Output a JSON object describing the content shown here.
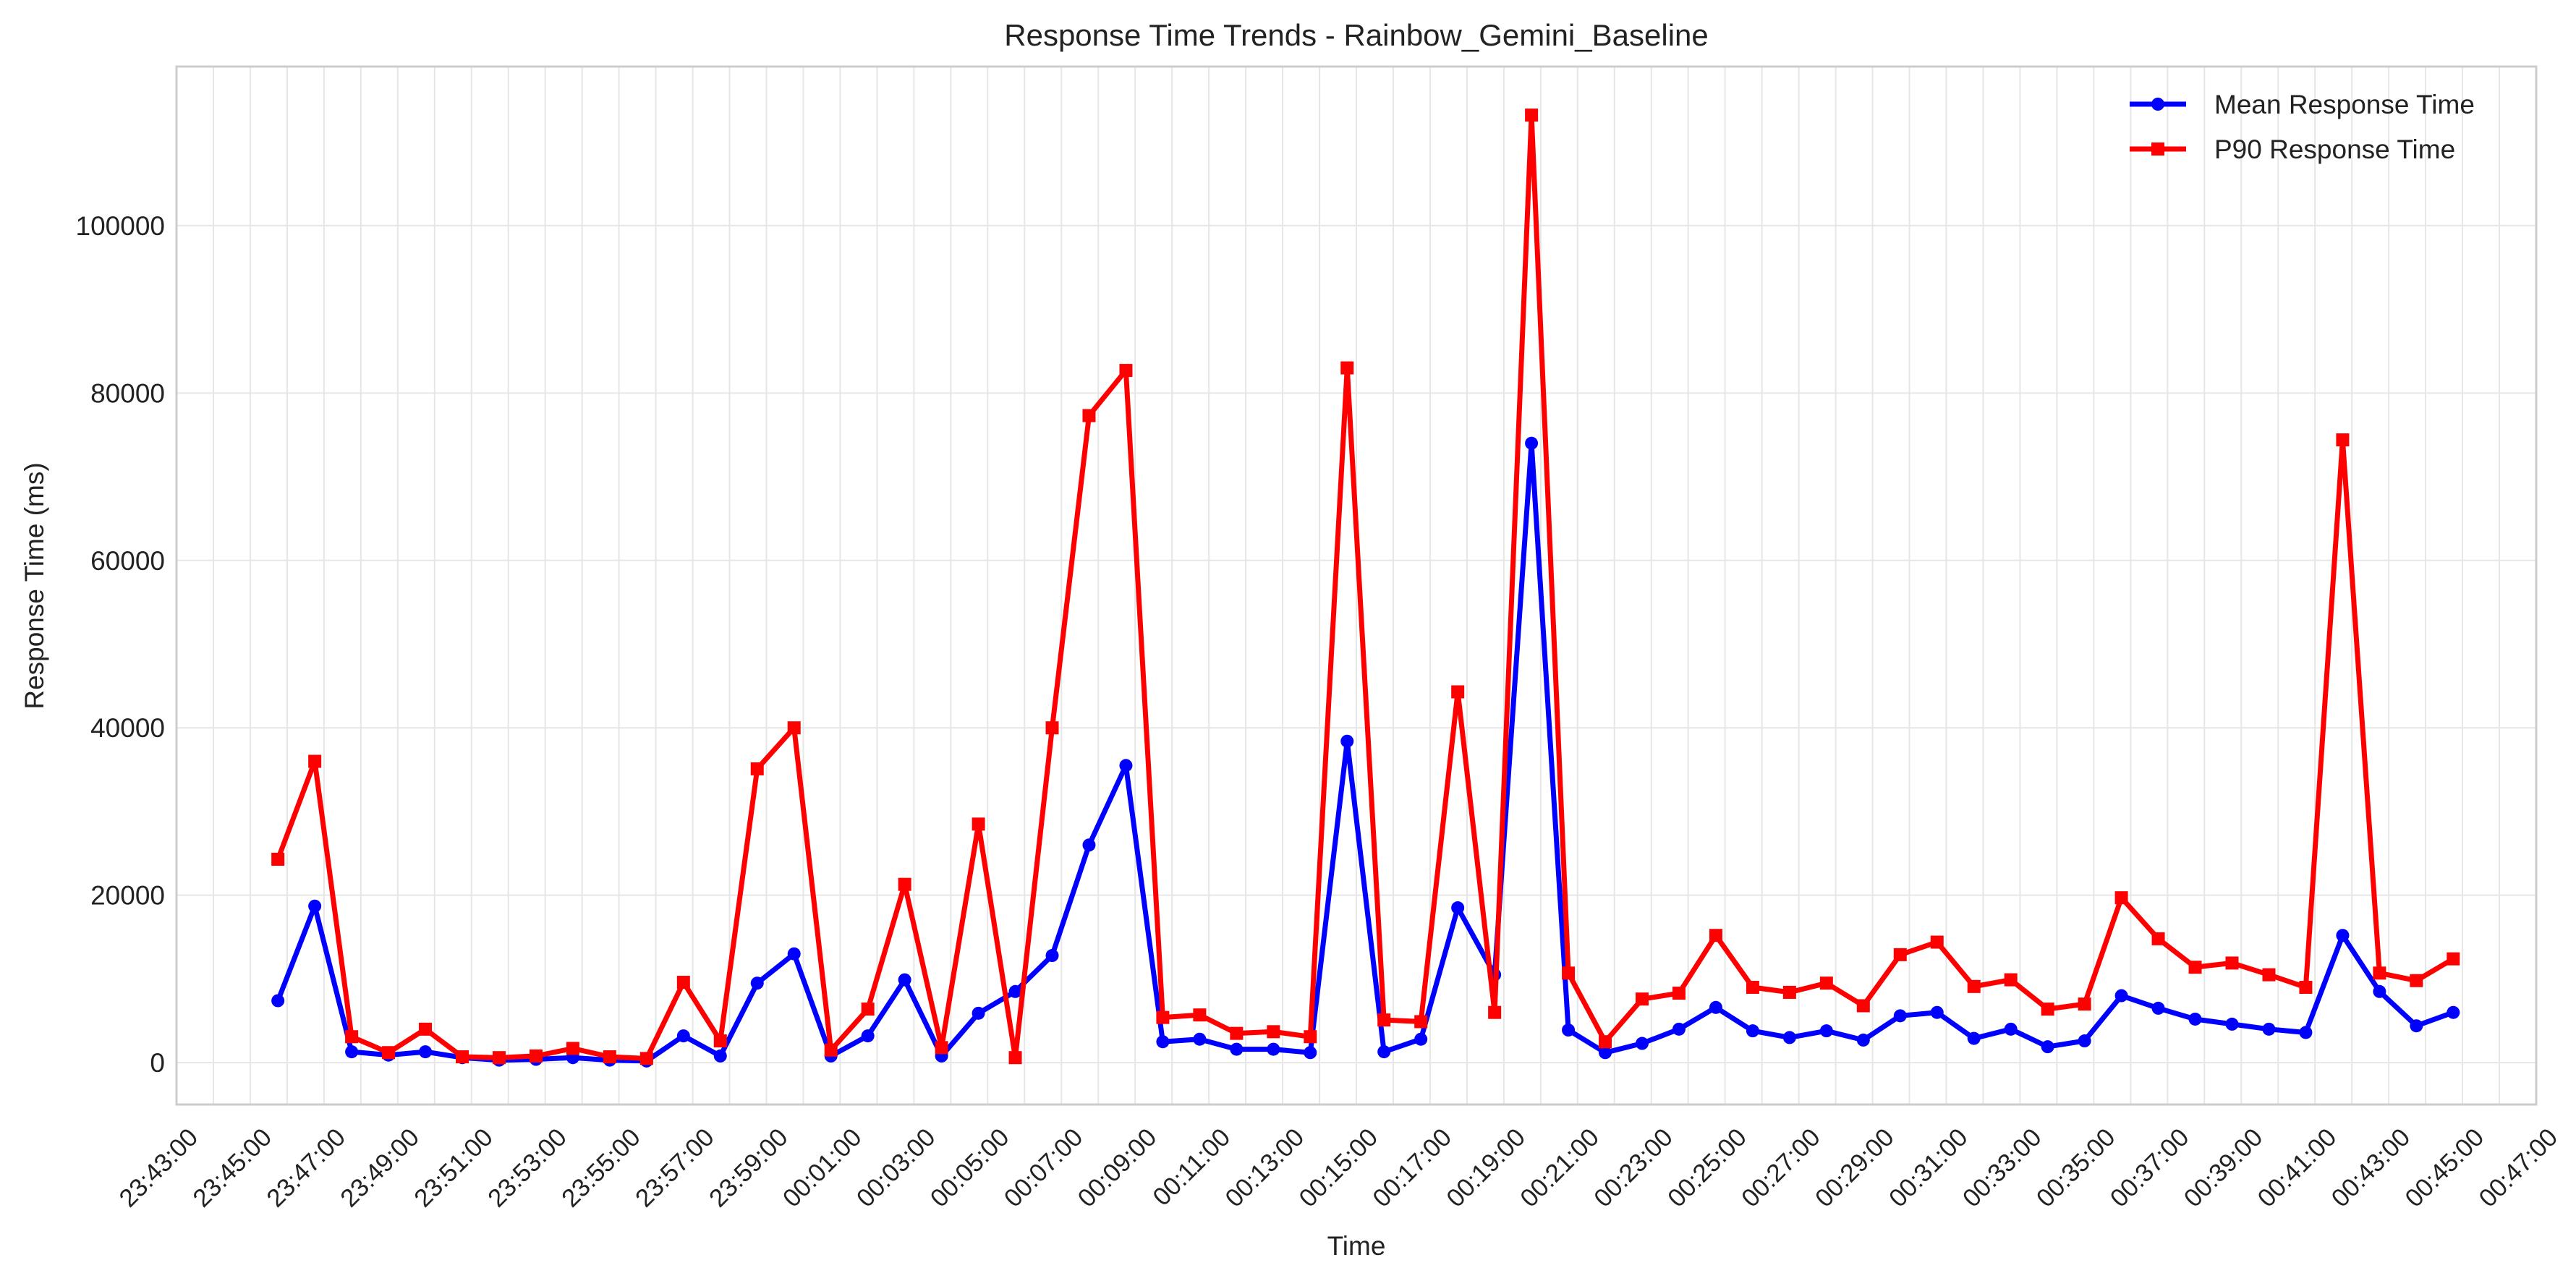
{
  "chart_data": {
    "type": "line",
    "title": "Response Time Trends - Rainbow_Gemini_Baseline",
    "xlabel": "Time",
    "ylabel": "Response Time (ms)",
    "grid": true,
    "legend_position": "top-right",
    "x_ticks": [
      "23:43:00",
      "23:45:00",
      "23:47:00",
      "23:49:00",
      "23:51:00",
      "23:53:00",
      "23:55:00",
      "23:57:00",
      "23:59:00",
      "00:01:00",
      "00:03:00",
      "00:05:00",
      "00:07:00",
      "00:09:00",
      "00:11:00",
      "00:13:00",
      "00:15:00",
      "00:17:00",
      "00:19:00",
      "00:21:00",
      "00:23:00",
      "00:25:00",
      "00:27:00",
      "00:29:00",
      "00:31:00",
      "00:33:00",
      "00:35:00",
      "00:37:00",
      "00:39:00",
      "00:41:00",
      "00:43:00",
      "00:45:00",
      "00:47:00"
    ],
    "y_ticks": [
      0,
      20000,
      40000,
      60000,
      80000,
      100000
    ],
    "x_range": [
      "23:43:00",
      "00:47:00"
    ],
    "ylim": [
      -5000,
      119000
    ],
    "x": [
      "23:45:45",
      "23:46:45",
      "23:47:45",
      "23:48:45",
      "23:49:45",
      "23:50:45",
      "23:51:45",
      "23:52:45",
      "23:53:45",
      "23:54:45",
      "23:55:45",
      "23:56:45",
      "23:57:45",
      "23:58:45",
      "23:59:45",
      "00:00:45",
      "00:01:45",
      "00:02:45",
      "00:03:45",
      "00:04:45",
      "00:05:45",
      "00:06:45",
      "00:07:45",
      "00:08:45",
      "00:09:45",
      "00:10:45",
      "00:11:45",
      "00:12:45",
      "00:13:45",
      "00:14:45",
      "00:15:45",
      "00:16:45",
      "00:17:45",
      "00:18:45",
      "00:19:45",
      "00:20:45",
      "00:21:45",
      "00:22:45",
      "00:23:45",
      "00:24:45",
      "00:25:45",
      "00:26:45",
      "00:27:45",
      "00:28:45",
      "00:29:45",
      "00:30:45",
      "00:31:45",
      "00:32:45",
      "00:33:45",
      "00:34:45",
      "00:35:45",
      "00:36:45",
      "00:37:45",
      "00:38:45",
      "00:39:45",
      "00:40:45",
      "00:41:45",
      "00:42:45",
      "00:43:45",
      "00:44:45"
    ],
    "series": [
      {
        "name": "Mean Response Time",
        "color": "#0000ff",
        "marker": "circle",
        "values": [
          7400,
          18700,
          1300,
          900,
          1300,
          600,
          300,
          400,
          600,
          300,
          200,
          3200,
          800,
          9500,
          13000,
          800,
          3200,
          9900,
          800,
          5900,
          8500,
          12800,
          26000,
          35500,
          2500,
          2800,
          1600,
          1600,
          1200,
          38400,
          1300,
          2800,
          18500,
          10500,
          74000,
          3900,
          1200,
          2300,
          4000,
          6600,
          3800,
          3000,
          3800,
          2700,
          5600,
          6000,
          2900,
          4000,
          1900,
          2600,
          8000,
          6500,
          5200,
          4600,
          4000,
          3600,
          15200,
          8500,
          4400,
          6000
        ]
      },
      {
        "name": "P90 Response Time",
        "color": "#ff0000",
        "marker": "square",
        "values": [
          24300,
          36000,
          3100,
          1200,
          4000,
          700,
          600,
          800,
          1700,
          700,
          500,
          9600,
          2600,
          35100,
          40000,
          1500,
          6400,
          21300,
          1800,
          28500,
          600,
          40000,
          77300,
          82700,
          5400,
          5700,
          3500,
          3700,
          3100,
          83000,
          5100,
          4900,
          44300,
          6000,
          113200,
          10700,
          2500,
          7600,
          8300,
          15200,
          9000,
          8400,
          9500,
          6800,
          12900,
          14400,
          9100,
          9900,
          6400,
          7000,
          19700,
          14800,
          11400,
          11900,
          10500,
          9000,
          74400,
          10700,
          9800,
          12400
        ]
      }
    ]
  }
}
